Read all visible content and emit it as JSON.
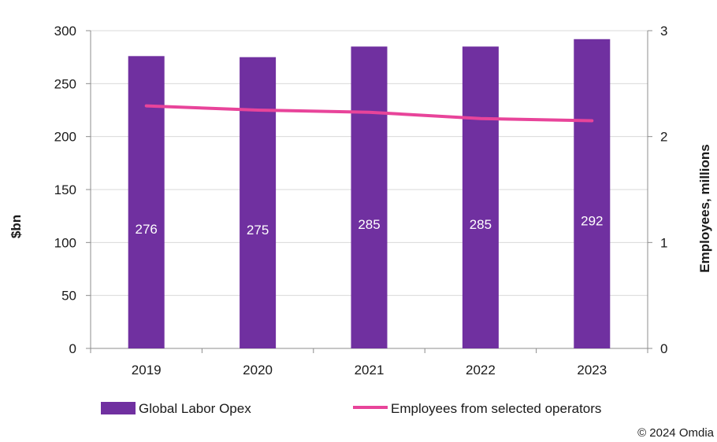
{
  "chart_data": {
    "type": "bar",
    "categories": [
      "2019",
      "2020",
      "2021",
      "2022",
      "2023"
    ],
    "series": [
      {
        "name": "Global Labor Opex",
        "type": "bar",
        "axis": "left",
        "values": [
          276,
          275,
          285,
          285,
          292
        ],
        "data_labels": [
          "276",
          "275",
          "285",
          "285",
          "292"
        ],
        "color": "#7030a0"
      },
      {
        "name": "Employees from selected operators",
        "type": "line",
        "axis": "right",
        "values": [
          2.29,
          2.25,
          2.23,
          2.17,
          2.15
        ],
        "color": "#e8449a"
      }
    ],
    "ylabel": "$bn",
    "ylabel_right": "Employees, millions",
    "ylim": [
      0,
      300
    ],
    "yticks": [
      0,
      50,
      100,
      150,
      200,
      250,
      300
    ],
    "ylim_right": [
      0,
      3
    ],
    "yticks_right": [
      0,
      1,
      2,
      3
    ],
    "grid": true,
    "legend": "bottom"
  },
  "source": "© 2024 Omdia"
}
